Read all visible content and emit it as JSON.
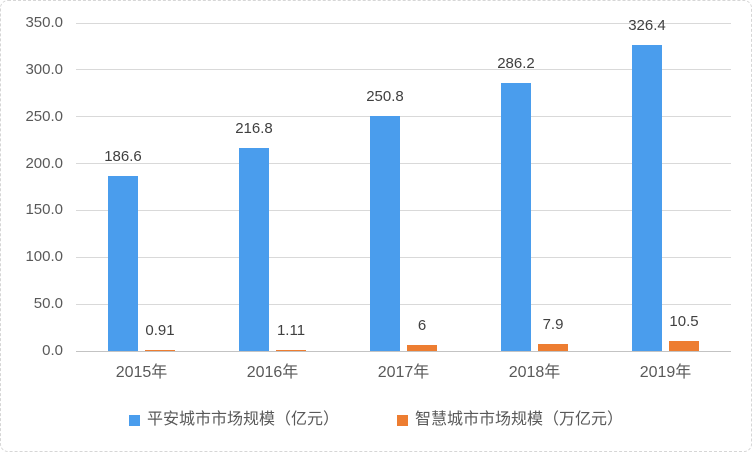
{
  "chart_data": {
    "type": "bar",
    "title": "",
    "categories": [
      "2015年",
      "2016年",
      "2017年",
      "2018年",
      "2019年"
    ],
    "series": [
      {
        "name": "平安城市市场规模（亿元）",
        "color": "#4A9DED",
        "values": [
          186.6,
          216.8,
          250.8,
          286.2,
          326.4
        ]
      },
      {
        "name": "智慧城市市场规模（万亿元）",
        "color": "#ED7D31",
        "values": [
          0.91,
          1.11,
          6,
          7.9,
          10.5
        ]
      }
    ],
    "ylim": [
      0,
      350
    ],
    "ytick_step": 50,
    "ytick_labels": [
      "0.0",
      "50.0",
      "100.0",
      "150.0",
      "200.0",
      "250.0",
      "300.0",
      "350.0"
    ],
    "grid": true,
    "data_labels": true,
    "legend_position": "bottom"
  },
  "style": {
    "gridline_color": "#d9d9d9",
    "axis_line_color": "#c3c3c3",
    "tick_text_color": "#595959",
    "data_label_color": "#404040"
  }
}
